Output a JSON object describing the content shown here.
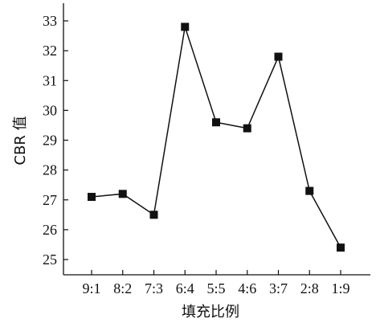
{
  "chart_data": {
    "type": "line",
    "title": "",
    "xlabel": "填充比例",
    "ylabel": "CBR 值",
    "categories": [
      "9:1",
      "8:2",
      "7:3",
      "6:4",
      "5:5",
      "4:6",
      "3:7",
      "2:8",
      "1:9"
    ],
    "series": [
      {
        "values": [
          27.1,
          27.2,
          26.5,
          32.8,
          29.6,
          29.4,
          31.8,
          27.3,
          25.4
        ],
        "color": "#111111",
        "marker": "square"
      }
    ],
    "ylim": [
      24.5,
      33.2
    ],
    "yticks": [
      25,
      26,
      27,
      28,
      29,
      30,
      31,
      32,
      33
    ],
    "grid": false,
    "legend": "none"
  }
}
